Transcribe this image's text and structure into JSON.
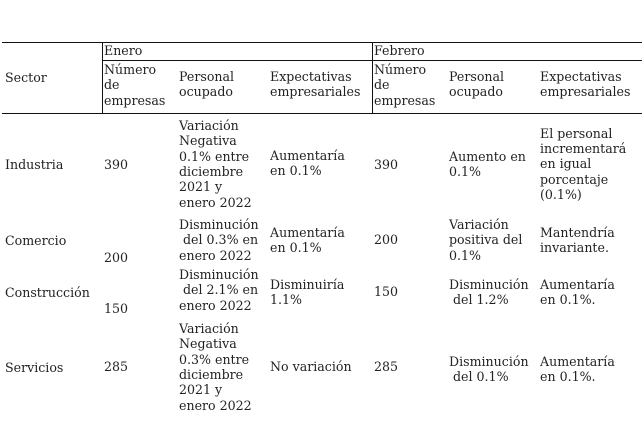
{
  "table": {
    "sector_header": "Sector",
    "month_headers": [
      "Enero",
      "Febrero"
    ],
    "columns": [
      [
        "Número",
        "de",
        "empresas"
      ],
      [
        "Personal",
        "ocupado"
      ],
      [
        "Expectativas",
        "empresariales"
      ],
      [
        "Número",
        "de",
        "empresas"
      ],
      [
        "Personal",
        "ocupado"
      ],
      [
        "Expectativas",
        "empresariales"
      ]
    ],
    "rows": [
      {
        "sector": "Industria",
        "cells": [
          [
            "390"
          ],
          [
            "Variación",
            "Negativa",
            "0.1% entre",
            "diciembre",
            "2021 y",
            "enero 2022"
          ],
          [
            "Aumentaría",
            "en 0.1%"
          ],
          [
            "390"
          ],
          [
            "Aumento en",
            "0.1%"
          ],
          [
            "El personal",
            "incrementará",
            "en igual",
            "porcentaje",
            "(0.1%)"
          ]
        ]
      },
      {
        "sector": "Comercio",
        "cells": [
          [
            "200"
          ],
          [
            "Disminución",
            "del 0.3% en",
            "enero 2022"
          ],
          [
            "Aumentaría",
            "en 0.1%"
          ],
          [
            "200"
          ],
          [
            "Variación",
            "positiva del",
            "0.1%"
          ],
          [
            "Mantendría",
            "invariante."
          ]
        ]
      },
      {
        "sector": "Construcción",
        "cells": [
          [
            "150"
          ],
          [
            "Disminución",
            "del 2.1% en",
            "enero 2022"
          ],
          [
            "Disminuiría",
            "1.1%"
          ],
          [
            "150"
          ],
          [
            "Disminución",
            "del 1.2%"
          ],
          [
            "Aumentaría",
            "en 0.1%."
          ]
        ]
      },
      {
        "sector": "Servicios",
        "cells": [
          [
            "285"
          ],
          [
            "Variación",
            "Negativa",
            "0.3% entre",
            "diciembre",
            "2021 y",
            "enero 2022"
          ],
          [
            "No variación"
          ],
          [
            "285"
          ],
          [
            "Disminución",
            "del 0.1%"
          ],
          [
            "Aumentaría",
            "en 0.1%."
          ]
        ]
      }
    ]
  }
}
